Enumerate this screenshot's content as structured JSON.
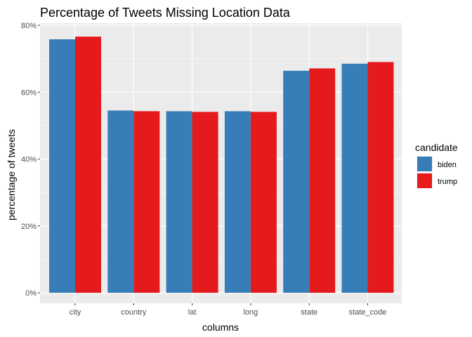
{
  "chart_data": {
    "type": "bar",
    "title": "Percentage of Tweets Missing Location Data",
    "xlabel": "columns",
    "ylabel": "percentage of tweets",
    "categories": [
      "city",
      "country",
      "lat",
      "long",
      "state",
      "state_code"
    ],
    "series": [
      {
        "name": "biden",
        "color": "#377eb8",
        "values": [
          75.8,
          54.5,
          54.3,
          54.3,
          66.4,
          68.5
        ]
      },
      {
        "name": "trump",
        "color": "#e41a1c",
        "values": [
          76.6,
          54.3,
          54.1,
          54.1,
          67.1,
          69.0
        ]
      }
    ],
    "ylim": [
      0,
      80
    ],
    "yticks": [
      0,
      20,
      40,
      60,
      80
    ],
    "ytick_labels": [
      "0%",
      "20%",
      "40%",
      "60%",
      "80%"
    ],
    "legend": {
      "title": "candidate",
      "position": "right"
    },
    "grid": true,
    "panel_background": "#ebebeb"
  }
}
